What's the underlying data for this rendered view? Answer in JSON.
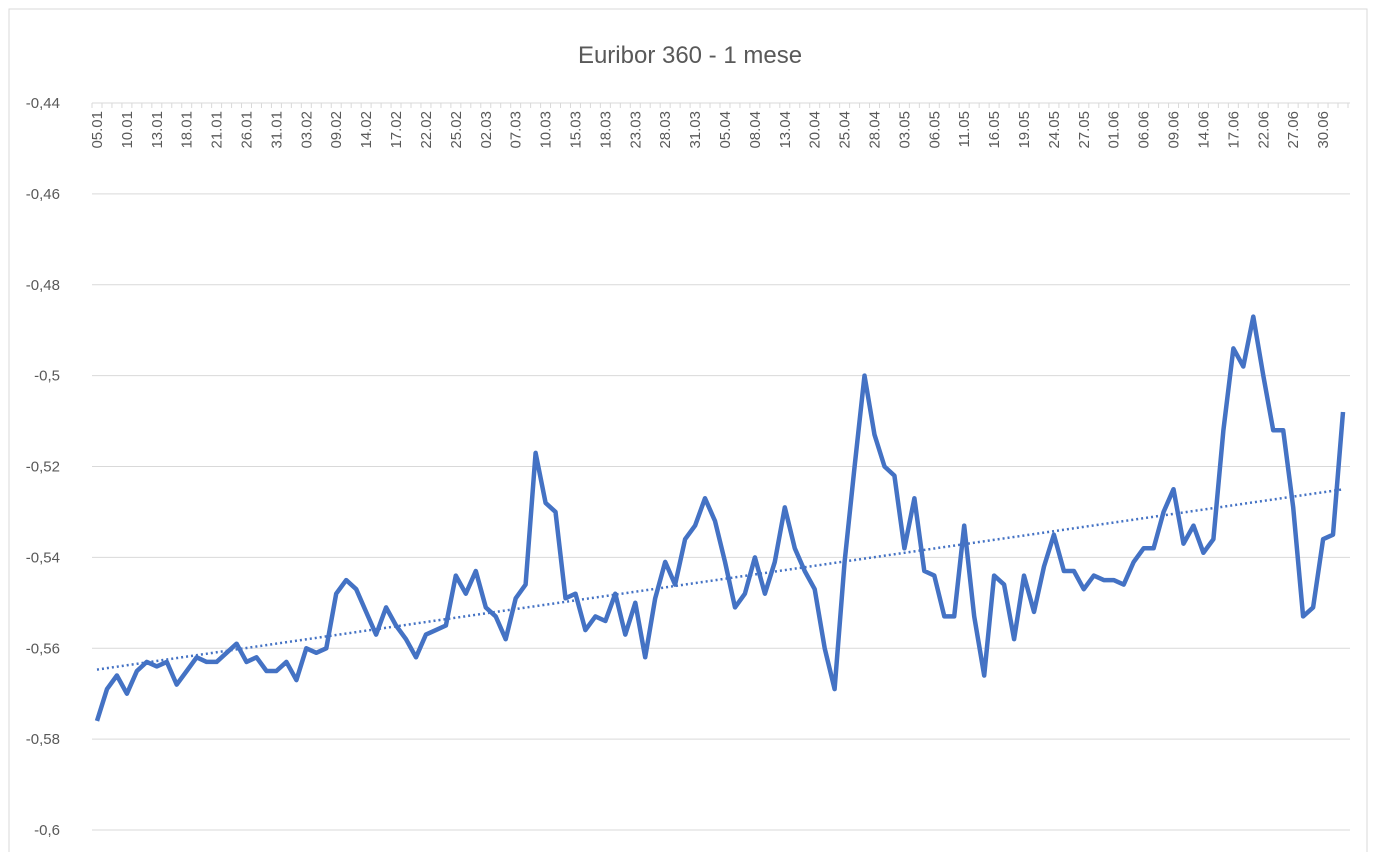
{
  "chart_data": {
    "type": "line",
    "title": "Euribor 360 - 1 mese",
    "categories": [
      "05.01",
      null,
      null,
      "10.01",
      null,
      null,
      "13.01",
      null,
      null,
      "18.01",
      null,
      null,
      "21.01",
      null,
      null,
      "26.01",
      null,
      null,
      "31.01",
      null,
      null,
      "03.02",
      null,
      null,
      "09.02",
      null,
      null,
      "14.02",
      null,
      null,
      "17.02",
      null,
      null,
      "22.02",
      null,
      null,
      "25.02",
      null,
      null,
      "02.03",
      null,
      null,
      "07.03",
      null,
      null,
      "10.03",
      null,
      null,
      "15.03",
      null,
      null,
      "18.03",
      null,
      null,
      "23.03",
      null,
      null,
      "28.03",
      null,
      null,
      "31.03",
      null,
      null,
      "05.04",
      null,
      null,
      "08.04",
      null,
      null,
      "13.04",
      null,
      null,
      "20.04",
      null,
      null,
      "25.04",
      null,
      null,
      "28.04",
      null,
      null,
      "03.05",
      null,
      null,
      "06.05",
      null,
      null,
      "11.05",
      null,
      null,
      "16.05",
      null,
      null,
      "19.05",
      null,
      null,
      "24.05",
      null,
      null,
      "27.05",
      null,
      null,
      "01.06",
      null,
      null,
      "06.06",
      null,
      null,
      "09.06",
      null,
      null,
      "14.06",
      null,
      null,
      "17.06",
      null,
      null,
      "22.06",
      null,
      null,
      "27.06",
      null,
      null,
      "30.06",
      null,
      null
    ],
    "series": [
      {
        "color": "#4472c4",
        "values": [
          -0.576,
          -0.569,
          -0.566,
          -0.57,
          -0.565,
          -0.563,
          -0.564,
          -0.563,
          -0.568,
          -0.565,
          -0.562,
          -0.563,
          -0.563,
          -0.561,
          -0.559,
          -0.563,
          -0.562,
          -0.565,
          -0.565,
          -0.563,
          -0.567,
          -0.56,
          -0.561,
          -0.56,
          -0.548,
          -0.545,
          -0.547,
          -0.552,
          -0.557,
          -0.551,
          -0.555,
          -0.558,
          -0.562,
          -0.557,
          -0.556,
          -0.555,
          -0.544,
          -0.548,
          -0.543,
          -0.551,
          -0.553,
          -0.558,
          -0.549,
          -0.546,
          -0.517,
          -0.528,
          -0.53,
          -0.549,
          -0.548,
          -0.556,
          -0.553,
          -0.554,
          -0.548,
          -0.557,
          -0.55,
          -0.562,
          -0.549,
          -0.541,
          -0.546,
          -0.536,
          -0.533,
          -0.527,
          -0.532,
          -0.541,
          -0.551,
          -0.548,
          -0.54,
          -0.548,
          -0.541,
          -0.529,
          -0.538,
          -0.543,
          -0.547,
          -0.56,
          -0.569,
          -0.541,
          -0.52,
          -0.5,
          -0.513,
          -0.52,
          -0.522,
          -0.538,
          -0.527,
          -0.543,
          -0.544,
          -0.553,
          -0.553,
          -0.533,
          -0.553,
          -0.566,
          -0.544,
          -0.546,
          -0.558,
          -0.544,
          -0.552,
          -0.542,
          -0.535,
          -0.543,
          -0.543,
          -0.547,
          -0.544,
          -0.545,
          -0.545,
          -0.546,
          -0.541,
          -0.538,
          -0.538,
          -0.53,
          -0.525,
          -0.537,
          -0.533,
          -0.539,
          -0.536,
          -0.512,
          -0.494,
          -0.498,
          -0.487,
          -0.5,
          -0.512,
          -0.512,
          -0.529,
          -0.553,
          -0.551,
          -0.536,
          -0.535,
          -0.508
        ]
      }
    ],
    "trendline": "linear",
    "ylim": [
      -0.6,
      -0.44
    ],
    "yticks": [
      {
        "value": -0.6,
        "label": "-0,6"
      },
      {
        "value": -0.58,
        "label": "-0,58"
      },
      {
        "value": -0.56,
        "label": "-0,56"
      },
      {
        "value": -0.54,
        "label": "-0,54"
      },
      {
        "value": -0.52,
        "label": "-0,52"
      },
      {
        "value": -0.5,
        "label": "-0,5"
      },
      {
        "value": -0.48,
        "label": "-0,48"
      },
      {
        "value": -0.46,
        "label": "-0,46"
      },
      {
        "value": -0.44,
        "label": "-0,44"
      }
    ],
    "grid": true
  }
}
